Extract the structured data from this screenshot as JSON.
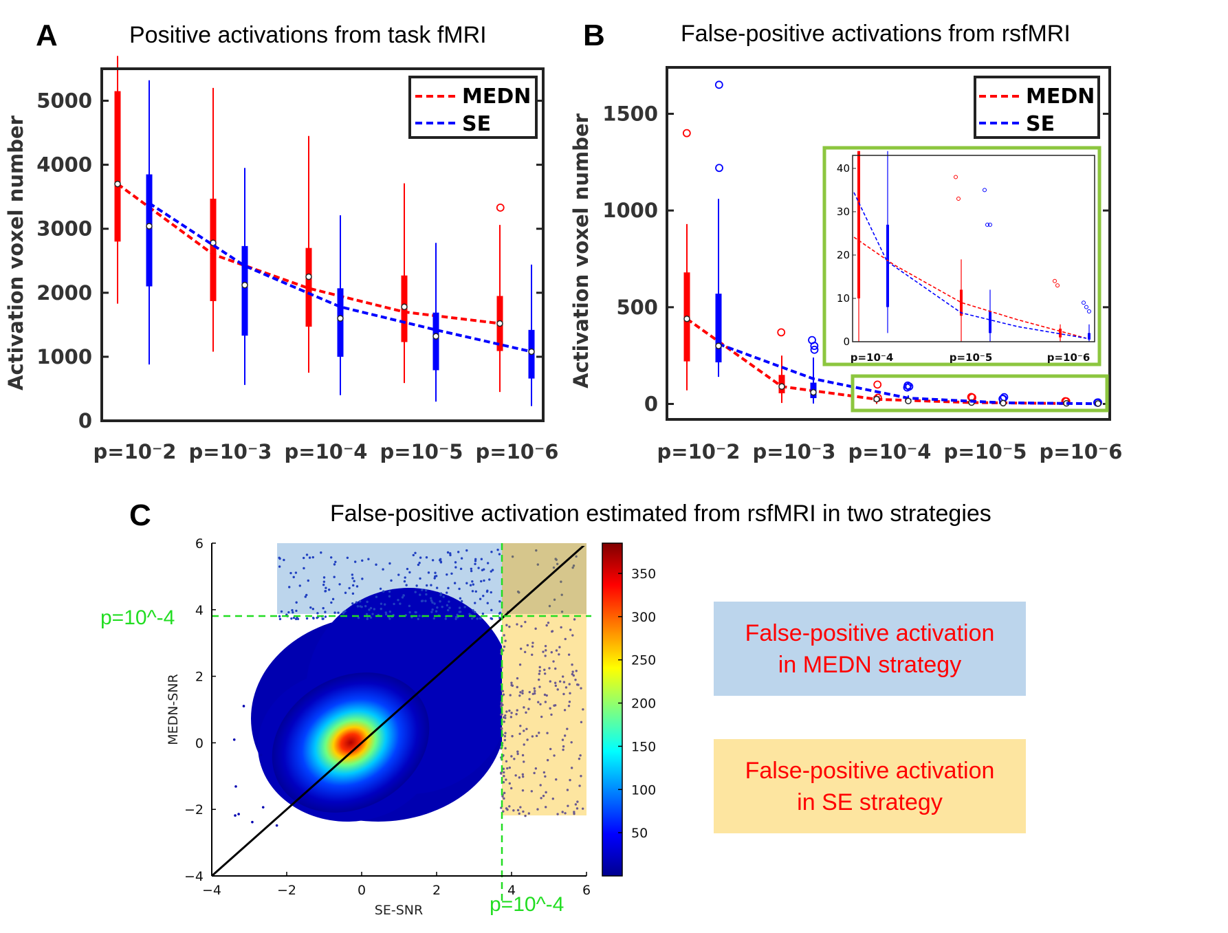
{
  "panels": {
    "A": {
      "letter": "A",
      "title": "Positive activations from task fMRI",
      "ylabel": "Activation voxel number",
      "legend": [
        "MEDN",
        "SE"
      ],
      "yticks": [
        "0",
        "1000",
        "2000",
        "3000",
        "4000",
        "5000"
      ],
      "xticks": [
        "p=10⁻2",
        "p=10⁻3",
        "p=10⁻4",
        "p=10⁻5",
        "p=10⁻6"
      ]
    },
    "B": {
      "letter": "B",
      "title": "False-positive activations from rsfMRI",
      "ylabel": "Activation voxel number",
      "legend": [
        "MEDN",
        "SE"
      ],
      "yticks": [
        "0",
        "500",
        "1000",
        "1500"
      ],
      "xticks": [
        "p=10⁻2",
        "p=10⁻3",
        "p=10⁻4",
        "p=10⁻5",
        "p=10⁻6"
      ],
      "inset_yticks": [
        "0",
        "10",
        "20",
        "30",
        "40"
      ],
      "inset_xticks": [
        "p=10⁻4",
        "p=10⁻5",
        "p=10⁻6"
      ]
    },
    "C": {
      "letter": "C",
      "title": "False-positive activation estimated from rsfMRI in two strategies",
      "xlabel": "SE-SNR",
      "ylabel": "MEDN-SNR",
      "xticks": [
        "−4",
        "−2",
        "0",
        "2",
        "4",
        "6"
      ],
      "yticks": [
        "−4",
        "−2",
        "0",
        "2",
        "4",
        "6"
      ],
      "threshold_label_y": "p=10^-4",
      "threshold_label_x": "p=10^-4",
      "colorbar_ticks": [
        "50",
        "100",
        "150",
        "200",
        "250",
        "300",
        "350"
      ],
      "box_medn": [
        "False-positive activation",
        "in MEDN strategy"
      ],
      "box_se": [
        "False-positive activation",
        "in SE strategy"
      ]
    }
  },
  "colors": {
    "medn": "#ff0000",
    "se": "#0000ff",
    "inset_frame": "#8cc63f",
    "threshold": "#22dd22",
    "medn_box": "#bcd5ec",
    "se_box": "#fde5a0"
  },
  "chart_data": [
    {
      "id": "A",
      "type": "box",
      "title": "Positive activations from task fMRI",
      "ylabel": "Activation voxel number",
      "categories": [
        "p=10^-2",
        "p=10^-3",
        "p=10^-4",
        "p=10^-5",
        "p=10^-6"
      ],
      "ylim": [
        0,
        5500
      ],
      "series": [
        {
          "name": "MEDN",
          "median": [
            3700,
            2780,
            2250,
            1780,
            1520
          ],
          "q1": [
            2800,
            1870,
            1470,
            1230,
            1090
          ],
          "q3": [
            5150,
            3470,
            2700,
            2270,
            1950
          ],
          "whisker_low": [
            1830,
            1080,
            750,
            590,
            450
          ],
          "whisker_high": [
            5700,
            5200,
            4450,
            3710,
            3060
          ],
          "outliers": [
            [],
            [],
            [],
            [],
            [
              3330
            ]
          ],
          "trend": [
            3700,
            2600,
            2070,
            1700,
            1520
          ]
        },
        {
          "name": "SE",
          "median": [
            3040,
            2120,
            1600,
            1320,
            1080
          ],
          "q1": [
            2100,
            1330,
            1000,
            790,
            660
          ],
          "q3": [
            3850,
            2730,
            2070,
            1690,
            1420
          ],
          "whisker_low": [
            880,
            560,
            400,
            300,
            230
          ],
          "whisker_high": [
            5320,
            3950,
            3210,
            2780,
            2440
          ],
          "outliers": [
            [],
            [],
            [],
            [],
            []
          ],
          "trend": [
            3400,
            2420,
            1780,
            1420,
            1080
          ]
        }
      ]
    },
    {
      "id": "B",
      "type": "box",
      "title": "False-positive activations from rsfMRI",
      "ylabel": "Activation voxel number",
      "categories": [
        "p=10^-2",
        "p=10^-3",
        "p=10^-4",
        "p=10^-5",
        "p=10^-6"
      ],
      "ylim": [
        -80,
        1740
      ],
      "series": [
        {
          "name": "MEDN",
          "median": [
            440,
            90,
            25,
            7,
            3
          ],
          "q1": [
            220,
            55,
            12,
            3,
            1
          ],
          "q3": [
            680,
            150,
            40,
            13,
            5
          ],
          "whisker_low": [
            70,
            5,
            0,
            0,
            0
          ],
          "whisker_high": [
            930,
            250,
            45,
            19,
            8
          ],
          "outliers": [
            [
              1400
            ],
            [
              370
            ],
            [
              100,
              32
            ],
            [
              36,
              33
            ],
            [
              14,
              13
            ]
          ],
          "trend": [
            440,
            90,
            24,
            7,
            2
          ]
        },
        {
          "name": "SE",
          "median": [
            300,
            60,
            15,
            4,
            2
          ],
          "q1": [
            215,
            30,
            8,
            2,
            1
          ],
          "q3": [
            570,
            110,
            27,
            10,
            3
          ],
          "whisker_low": [
            140,
            2,
            2,
            0,
            0
          ],
          "whisker_high": [
            1060,
            240,
            44,
            12,
            4
          ],
          "outliers": [
            [
              1650,
              1220
            ],
            [
              330,
              300,
              280
            ],
            [
              95,
              90,
              85
            ],
            [
              35,
              27,
              26
            ],
            [
              8,
              7,
              6
            ]
          ],
          "trend": [
            310,
            130,
            30,
            6,
            1
          ]
        }
      ],
      "inset": {
        "categories": [
          "p=10^-4",
          "p=10^-5",
          "p=10^-6"
        ],
        "ylim": [
          0,
          43
        ],
        "series": [
          {
            "name": "MEDN",
            "median": [
              24,
              8,
              2
            ],
            "q1": [
              10,
              6,
              1
            ],
            "q3": [
              44,
              12,
              3
            ],
            "whisker_low": [
              0,
              0,
              0
            ],
            "whisker_high": [
              44,
              19,
              4
            ],
            "outliers": [
              [],
              [
                38,
                33
              ],
              [
                14,
                13
              ]
            ]
          },
          {
            "name": "SE",
            "median": [
              15,
              4,
              1
            ],
            "q1": [
              8,
              2,
              0.5
            ],
            "q3": [
              27,
              7,
              2
            ],
            "whisker_low": [
              2,
              0,
              0
            ],
            "whisker_high": [
              44,
              12,
              4
            ],
            "outliers": [
              [],
              [
                35,
                27,
                27
              ],
              [
                9,
                8,
                7
              ]
            ]
          }
        ]
      }
    },
    {
      "id": "C",
      "type": "scatter",
      "title": "False-positive activation estimated from rsfMRI in two strategies",
      "xlabel": "SE-SNR",
      "ylabel": "MEDN-SNR",
      "xlim": [
        -4,
        6
      ],
      "ylim": [
        -4,
        6
      ],
      "threshold": 3.72,
      "density_center": [
        -0.5,
        -0.4
      ],
      "colorbar": {
        "min": 0,
        "max": 385,
        "ticks": [
          50,
          100,
          150,
          200,
          250,
          300,
          350
        ],
        "colormap": "jet"
      }
    }
  ]
}
